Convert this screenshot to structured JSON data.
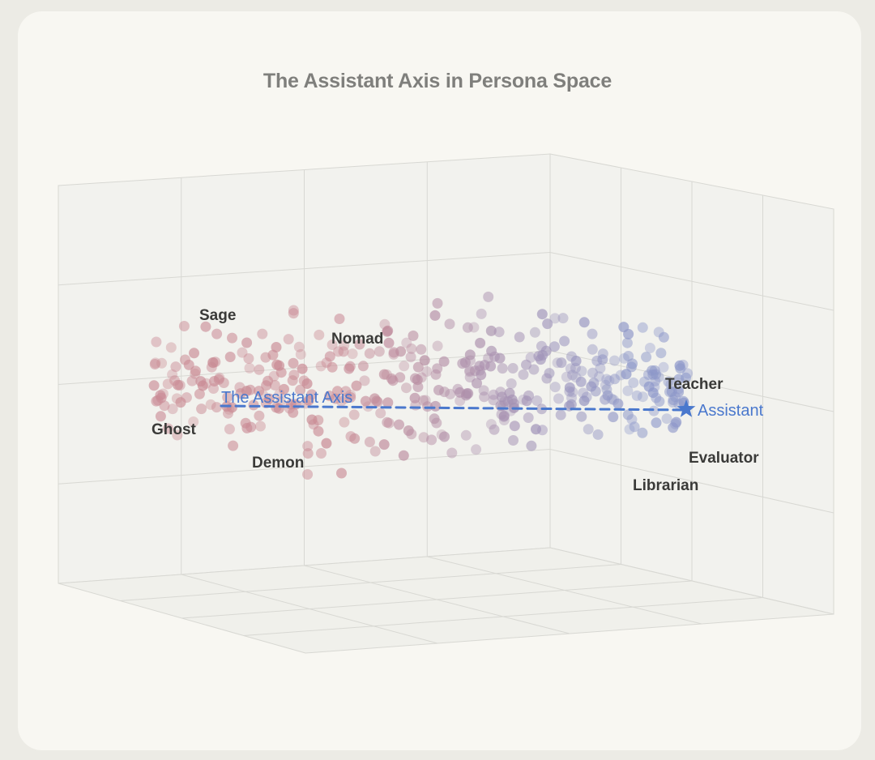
{
  "chart_data": {
    "type": "scatter",
    "title": "The Assistant Axis in Persona Space",
    "axis": {
      "label": "The Assistant Axis",
      "endpoint_label": "Assistant"
    },
    "persona_labels": [
      "Sage",
      "Nomad",
      "Ghost",
      "Demon",
      "Teacher",
      "Evaluator",
      "Librarian"
    ],
    "colors": {
      "assistant_axis": "#4a78cd",
      "role_points_far": "#c98a94",
      "role_points_near": "#8c97c9",
      "grid_lines": "#d8d8d3",
      "wall_fill": "#f2f2ee"
    },
    "grid": true,
    "projection": "3d"
  }
}
